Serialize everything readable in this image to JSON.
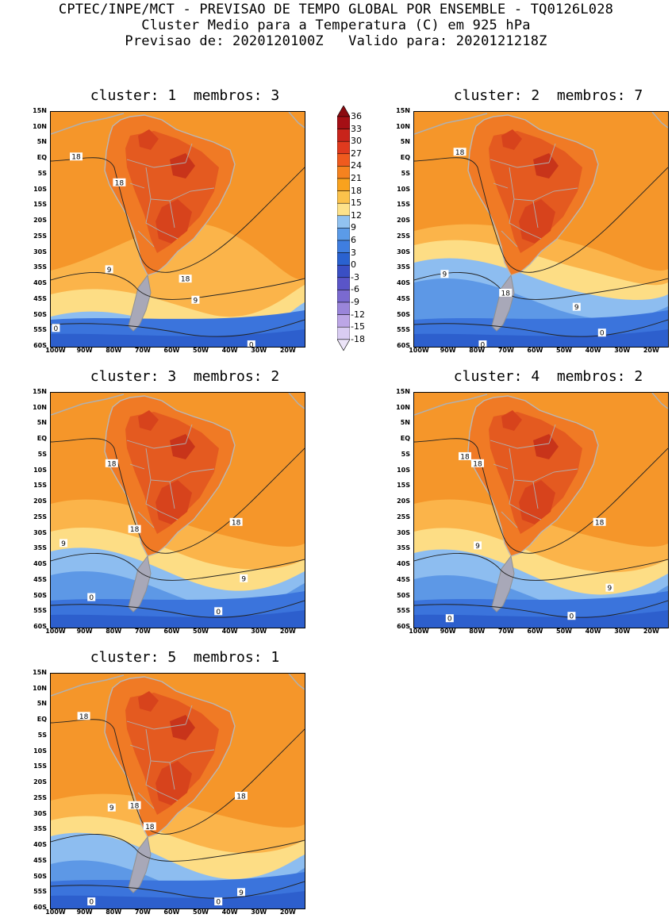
{
  "header": {
    "line1": "CPTEC/INPE/MCT - PREVISAO DE TEMPO GLOBAL POR ENSEMBLE - TQ0126L028",
    "line2": "Cluster Medio para a Temperatura (C) em 925 hPa",
    "line3": "Previsao de: 2020120100Z   Valido para: 2020121218Z"
  },
  "panels": [
    {
      "title": "cluster: 1  membros: 3",
      "contour_labels": [
        {
          "text": "18",
          "gx": 0.1,
          "gy": 0.19
        },
        {
          "text": "18",
          "gx": 0.27,
          "gy": 0.3
        },
        {
          "text": "18",
          "gx": 0.53,
          "gy": 0.71
        },
        {
          "text": "9",
          "gx": 0.23,
          "gy": 0.67
        },
        {
          "text": "9",
          "gx": 0.57,
          "gy": 0.8
        },
        {
          "text": "0",
          "gx": 0.02,
          "gy": 0.92
        },
        {
          "text": "0",
          "gx": 0.79,
          "gy": 0.99
        }
      ]
    },
    {
      "title": "cluster: 2  membros: 7",
      "contour_labels": [
        {
          "text": "18",
          "gx": 0.18,
          "gy": 0.17
        },
        {
          "text": "9",
          "gx": 0.12,
          "gy": 0.69
        },
        {
          "text": "18",
          "gx": 0.36,
          "gy": 0.77
        },
        {
          "text": "9",
          "gx": 0.64,
          "gy": 0.83
        },
        {
          "text": "0",
          "gx": 0.74,
          "gy": 0.94
        },
        {
          "text": "0",
          "gx": 0.27,
          "gy": 0.99
        }
      ]
    },
    {
      "title": "cluster: 3  membros: 2",
      "contour_labels": [
        {
          "text": "18",
          "gx": 0.24,
          "gy": 0.3
        },
        {
          "text": "18",
          "gx": 0.33,
          "gy": 0.58
        },
        {
          "text": "18",
          "gx": 0.73,
          "gy": 0.55
        },
        {
          "text": "9",
          "gx": 0.05,
          "gy": 0.64
        },
        {
          "text": "9",
          "gx": 0.76,
          "gy": 0.79
        },
        {
          "text": "0",
          "gx": 0.16,
          "gy": 0.87
        },
        {
          "text": "0",
          "gx": 0.66,
          "gy": 0.93
        }
      ]
    },
    {
      "title": "cluster: 4  membros: 2",
      "contour_labels": [
        {
          "text": "18",
          "gx": 0.2,
          "gy": 0.27
        },
        {
          "text": "18",
          "gx": 0.25,
          "gy": 0.3
        },
        {
          "text": "18",
          "gx": 0.73,
          "gy": 0.55
        },
        {
          "text": "9",
          "gx": 0.25,
          "gy": 0.65
        },
        {
          "text": "9",
          "gx": 0.77,
          "gy": 0.83
        },
        {
          "text": "0",
          "gx": 0.14,
          "gy": 0.96
        },
        {
          "text": "0",
          "gx": 0.62,
          "gy": 0.95
        }
      ]
    },
    {
      "title": "cluster: 5  membros: 1",
      "contour_labels": [
        {
          "text": "18",
          "gx": 0.13,
          "gy": 0.18
        },
        {
          "text": "18",
          "gx": 0.33,
          "gy": 0.56
        },
        {
          "text": "18",
          "gx": 0.39,
          "gy": 0.65
        },
        {
          "text": "18",
          "gx": 0.75,
          "gy": 0.52
        },
        {
          "text": "9",
          "gx": 0.24,
          "gy": 0.57
        },
        {
          "text": "9",
          "gx": 0.75,
          "gy": 0.93
        },
        {
          "text": "0",
          "gx": 0.16,
          "gy": 0.97
        },
        {
          "text": "0",
          "gx": 0.66,
          "gy": 0.97
        }
      ]
    }
  ],
  "axes": {
    "y_ticks": [
      "15N",
      "10N",
      "5N",
      "EQ",
      "5S",
      "10S",
      "15S",
      "20S",
      "25S",
      "30S",
      "35S",
      "40S",
      "45S",
      "50S",
      "55S",
      "60S"
    ],
    "x_ticks": [
      "100W",
      "90W",
      "80W",
      "70W",
      "60W",
      "50W",
      "40W",
      "30W",
      "20W"
    ]
  },
  "colorbar": {
    "labels": [
      "36",
      "33",
      "30",
      "27",
      "24",
      "21",
      "18",
      "15",
      "12",
      "9",
      "6",
      "3",
      "0",
      "-3",
      "-6",
      "-9",
      "-12",
      "-15",
      "-18"
    ],
    "colors": [
      "#a50f15",
      "#c8241b",
      "#e03a1e",
      "#ef5a1e",
      "#f5821f",
      "#f9a21e",
      "#fbc24b",
      "#fde28a",
      "#91c2f0",
      "#5b9be8",
      "#3f7ee0",
      "#2a62d0",
      "#3a4fc4",
      "#5a55c8",
      "#7a6ad0",
      "#9a85da",
      "#bca6e6",
      "#d9ccf2"
    ],
    "top_arrow_color": "#8b0a10",
    "bottom_arrow_color": "#ece4f8"
  }
}
